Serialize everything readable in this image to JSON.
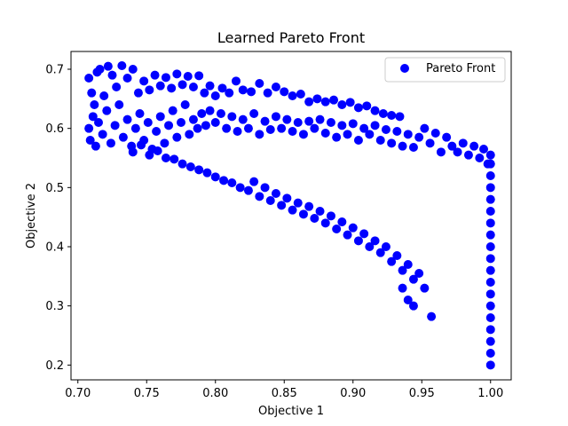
{
  "chart_data": {
    "type": "scatter",
    "title": "Learned Pareto Front",
    "xlabel": "Objective 1",
    "ylabel": "Objective 2",
    "xlim": [
      0.695,
      1.015
    ],
    "ylim": [
      0.175,
      0.73
    ],
    "xticks": [
      "0.70",
      "0.75",
      "0.80",
      "0.85",
      "0.90",
      "0.95",
      "1.00"
    ],
    "yticks": [
      "0.2",
      "0.3",
      "0.4",
      "0.5",
      "0.6",
      "0.7"
    ],
    "legend": {
      "position": "top-right",
      "entries": [
        "Pareto Front"
      ]
    },
    "grid": false,
    "series": [
      {
        "name": "Pareto Front",
        "color": "#0000ff",
        "marker": "circle",
        "points": [
          [
            0.708,
            0.685
          ],
          [
            0.71,
            0.66
          ],
          [
            0.712,
            0.64
          ],
          [
            0.714,
            0.695
          ],
          [
            0.716,
            0.7
          ],
          [
            0.719,
            0.655
          ],
          [
            0.722,
            0.705
          ],
          [
            0.725,
            0.69
          ],
          [
            0.728,
            0.67
          ],
          [
            0.732,
            0.706
          ],
          [
            0.736,
            0.685
          ],
          [
            0.74,
            0.7
          ],
          [
            0.744,
            0.66
          ],
          [
            0.748,
            0.68
          ],
          [
            0.752,
            0.665
          ],
          [
            0.756,
            0.69
          ],
          [
            0.76,
            0.672
          ],
          [
            0.764,
            0.686
          ],
          [
            0.768,
            0.668
          ],
          [
            0.772,
            0.692
          ],
          [
            0.776,
            0.674
          ],
          [
            0.78,
            0.688
          ],
          [
            0.784,
            0.67
          ],
          [
            0.788,
            0.689
          ],
          [
            0.792,
            0.66
          ],
          [
            0.796,
            0.672
          ],
          [
            0.8,
            0.655
          ],
          [
            0.805,
            0.668
          ],
          [
            0.81,
            0.66
          ],
          [
            0.815,
            0.68
          ],
          [
            0.82,
            0.665
          ],
          [
            0.826,
            0.662
          ],
          [
            0.832,
            0.676
          ],
          [
            0.838,
            0.66
          ],
          [
            0.844,
            0.67
          ],
          [
            0.85,
            0.662
          ],
          [
            0.856,
            0.655
          ],
          [
            0.862,
            0.658
          ],
          [
            0.868,
            0.645
          ],
          [
            0.874,
            0.65
          ],
          [
            0.88,
            0.645
          ],
          [
            0.886,
            0.648
          ],
          [
            0.892,
            0.64
          ],
          [
            0.898,
            0.644
          ],
          [
            0.904,
            0.635
          ],
          [
            0.91,
            0.638
          ],
          [
            0.916,
            0.63
          ],
          [
            0.922,
            0.625
          ],
          [
            0.928,
            0.622
          ],
          [
            0.934,
            0.62
          ],
          [
            0.708,
            0.6
          ],
          [
            0.709,
            0.58
          ],
          [
            0.711,
            0.62
          ],
          [
            0.713,
            0.57
          ],
          [
            0.715,
            0.61
          ],
          [
            0.718,
            0.59
          ],
          [
            0.721,
            0.63
          ],
          [
            0.724,
            0.575
          ],
          [
            0.727,
            0.605
          ],
          [
            0.73,
            0.64
          ],
          [
            0.733,
            0.585
          ],
          [
            0.736,
            0.615
          ],
          [
            0.739,
            0.57
          ],
          [
            0.742,
            0.6
          ],
          [
            0.745,
            0.625
          ],
          [
            0.748,
            0.58
          ],
          [
            0.751,
            0.61
          ],
          [
            0.754,
            0.565
          ],
          [
            0.757,
            0.595
          ],
          [
            0.76,
            0.62
          ],
          [
            0.763,
            0.575
          ],
          [
            0.766,
            0.605
          ],
          [
            0.769,
            0.63
          ],
          [
            0.772,
            0.585
          ],
          [
            0.775,
            0.61
          ],
          [
            0.778,
            0.64
          ],
          [
            0.781,
            0.59
          ],
          [
            0.784,
            0.615
          ],
          [
            0.787,
            0.6
          ],
          [
            0.79,
            0.625
          ],
          [
            0.793,
            0.605
          ],
          [
            0.796,
            0.63
          ],
          [
            0.8,
            0.61
          ],
          [
            0.804,
            0.625
          ],
          [
            0.808,
            0.6
          ],
          [
            0.812,
            0.62
          ],
          [
            0.816,
            0.595
          ],
          [
            0.82,
            0.615
          ],
          [
            0.824,
            0.6
          ],
          [
            0.828,
            0.625
          ],
          [
            0.832,
            0.59
          ],
          [
            0.836,
            0.612
          ],
          [
            0.84,
            0.598
          ],
          [
            0.844,
            0.62
          ],
          [
            0.848,
            0.6
          ],
          [
            0.852,
            0.615
          ],
          [
            0.856,
            0.595
          ],
          [
            0.86,
            0.61
          ],
          [
            0.864,
            0.59
          ],
          [
            0.868,
            0.612
          ],
          [
            0.872,
            0.6
          ],
          [
            0.876,
            0.615
          ],
          [
            0.88,
            0.592
          ],
          [
            0.884,
            0.61
          ],
          [
            0.888,
            0.585
          ],
          [
            0.892,
            0.605
          ],
          [
            0.896,
            0.59
          ],
          [
            0.9,
            0.608
          ],
          [
            0.904,
            0.58
          ],
          [
            0.908,
            0.6
          ],
          [
            0.912,
            0.59
          ],
          [
            0.916,
            0.605
          ],
          [
            0.92,
            0.58
          ],
          [
            0.924,
            0.598
          ],
          [
            0.928,
            0.575
          ],
          [
            0.932,
            0.595
          ],
          [
            0.936,
            0.57
          ],
          [
            0.94,
            0.59
          ],
          [
            0.944,
            0.568
          ],
          [
            0.948,
            0.585
          ],
          [
            0.952,
            0.6
          ],
          [
            0.956,
            0.575
          ],
          [
            0.96,
            0.592
          ],
          [
            0.964,
            0.56
          ],
          [
            0.968,
            0.585
          ],
          [
            0.972,
            0.57
          ],
          [
            0.976,
            0.56
          ],
          [
            0.98,
            0.575
          ],
          [
            0.984,
            0.555
          ],
          [
            0.988,
            0.57
          ],
          [
            0.992,
            0.55
          ],
          [
            0.995,
            0.565
          ],
          [
            0.998,
            0.54
          ],
          [
            1.0,
            0.555
          ],
          [
            0.74,
            0.56
          ],
          [
            0.746,
            0.572
          ],
          [
            0.752,
            0.555
          ],
          [
            0.758,
            0.562
          ],
          [
            0.764,
            0.55
          ],
          [
            0.77,
            0.548
          ],
          [
            0.776,
            0.54
          ],
          [
            0.782,
            0.535
          ],
          [
            0.788,
            0.53
          ],
          [
            0.794,
            0.525
          ],
          [
            0.8,
            0.518
          ],
          [
            0.806,
            0.512
          ],
          [
            0.812,
            0.508
          ],
          [
            0.818,
            0.5
          ],
          [
            0.824,
            0.495
          ],
          [
            0.828,
            0.51
          ],
          [
            0.832,
            0.485
          ],
          [
            0.836,
            0.5
          ],
          [
            0.84,
            0.478
          ],
          [
            0.844,
            0.49
          ],
          [
            0.848,
            0.47
          ],
          [
            0.852,
            0.482
          ],
          [
            0.856,
            0.462
          ],
          [
            0.86,
            0.474
          ],
          [
            0.864,
            0.455
          ],
          [
            0.868,
            0.468
          ],
          [
            0.872,
            0.448
          ],
          [
            0.876,
            0.46
          ],
          [
            0.88,
            0.44
          ],
          [
            0.884,
            0.452
          ],
          [
            0.888,
            0.43
          ],
          [
            0.892,
            0.442
          ],
          [
            0.896,
            0.42
          ],
          [
            0.9,
            0.432
          ],
          [
            0.904,
            0.41
          ],
          [
            0.908,
            0.422
          ],
          [
            0.912,
            0.4
          ],
          [
            0.916,
            0.41
          ],
          [
            0.92,
            0.39
          ],
          [
            0.924,
            0.4
          ],
          [
            0.928,
            0.375
          ],
          [
            0.932,
            0.385
          ],
          [
            0.936,
            0.36
          ],
          [
            0.94,
            0.37
          ],
          [
            0.944,
            0.345
          ],
          [
            0.948,
            0.355
          ],
          [
            0.952,
            0.33
          ],
          [
            0.94,
            0.31
          ],
          [
            0.944,
            0.3
          ],
          [
            0.936,
            0.33
          ],
          [
            0.957,
            0.282
          ],
          [
            1.0,
            0.54
          ],
          [
            1.0,
            0.52
          ],
          [
            1.0,
            0.5
          ],
          [
            1.0,
            0.48
          ],
          [
            1.0,
            0.46
          ],
          [
            1.0,
            0.44
          ],
          [
            1.0,
            0.42
          ],
          [
            1.0,
            0.4
          ],
          [
            1.0,
            0.38
          ],
          [
            1.0,
            0.36
          ],
          [
            1.0,
            0.34
          ],
          [
            1.0,
            0.32
          ],
          [
            1.0,
            0.3
          ],
          [
            1.0,
            0.28
          ],
          [
            1.0,
            0.26
          ],
          [
            1.0,
            0.24
          ],
          [
            1.0,
            0.22
          ],
          [
            1.0,
            0.2
          ]
        ]
      }
    ]
  }
}
